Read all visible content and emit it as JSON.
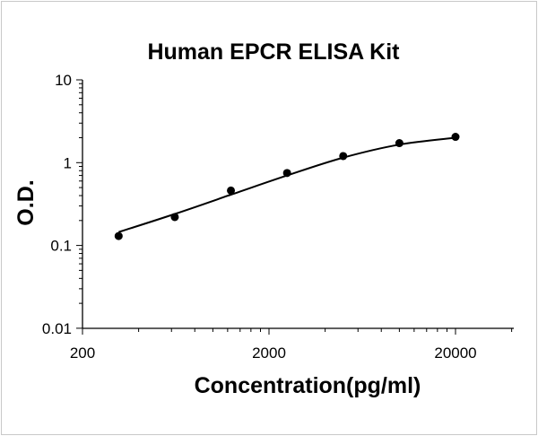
{
  "chart_data": {
    "type": "scatter",
    "title": "Human EPCR ELISA Kit",
    "xlabel": "Concentration(pg/ml)",
    "ylabel": "O.D.",
    "x_scale": "log",
    "y_scale": "log",
    "xlim": [
      200,
      60000
    ],
    "ylim": [
      0.01,
      10
    ],
    "x_ticks": [
      {
        "value": 200,
        "label": "200"
      },
      {
        "value": 2000,
        "label": "2000"
      },
      {
        "value": 20000,
        "label": "20000"
      }
    ],
    "y_ticks": [
      {
        "value": 10,
        "label": "10"
      },
      {
        "value": 1,
        "label": "1"
      },
      {
        "value": 0.1,
        "label": "0.1"
      },
      {
        "value": 0.01,
        "label": "0.01"
      }
    ],
    "grid": false,
    "legend": "none",
    "series": [
      {
        "x": [
          312.5,
          625,
          1250,
          2500,
          5000,
          10000,
          20000
        ],
        "y": [
          0.13,
          0.22,
          0.46,
          0.75,
          1.2,
          1.72,
          2.05
        ]
      }
    ],
    "fit_curve": {
      "x": [
        312.5,
        625,
        1250,
        2500,
        5000,
        10000,
        20000
      ],
      "y": [
        0.145,
        0.24,
        0.41,
        0.7,
        1.15,
        1.65,
        2.0
      ]
    },
    "colors": {
      "points": "#000000",
      "line": "#000000",
      "axis": "#000000"
    }
  }
}
